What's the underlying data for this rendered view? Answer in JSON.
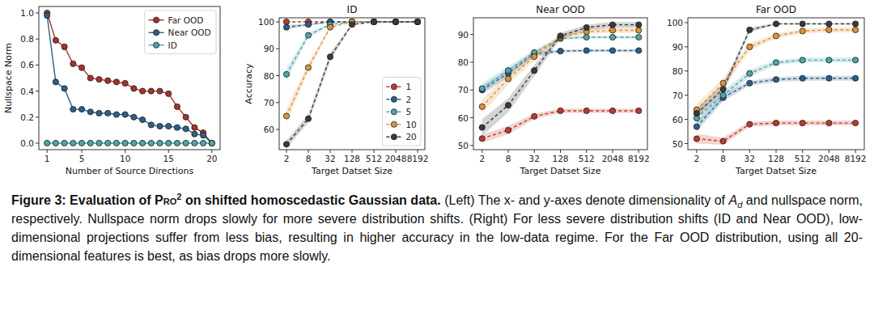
{
  "chart_data": [
    {
      "type": "line",
      "xlabel": "Number of Source Directions",
      "ylabel": "Nullspace Norm",
      "x": [
        1,
        2,
        3,
        4,
        5,
        6,
        7,
        8,
        9,
        10,
        11,
        12,
        13,
        14,
        15,
        16,
        17,
        18,
        19,
        20
      ],
      "xlim": [
        0.05,
        20.95
      ],
      "xticks": [
        1,
        5,
        10,
        15,
        20
      ],
      "ylim": [
        -0.05,
        1.05
      ],
      "yticks": [
        {
          "value": 0,
          "label": "0.0"
        },
        {
          "value": 0.2,
          "label": "0.2"
        },
        {
          "value": 0.4,
          "label": "0.4"
        },
        {
          "value": 0.6,
          "label": "0.6"
        },
        {
          "value": 0.8,
          "label": "0.8"
        },
        {
          "value": 1,
          "label": "1.0"
        }
      ],
      "legend": "upper right",
      "marker": "circle",
      "line_style": "solid",
      "series": [
        {
          "name": "Far OOD",
          "color": "#a8322c",
          "values": [
            1.0,
            0.79,
            0.74,
            0.61,
            0.58,
            0.5,
            0.49,
            0.48,
            0.47,
            0.46,
            0.42,
            0.4,
            0.4,
            0.4,
            0.38,
            0.28,
            0.2,
            0.12,
            0.08,
            0.0
          ]
        },
        {
          "name": "Near OOD",
          "color": "#2c5f8a",
          "values": [
            0.98,
            0.47,
            0.42,
            0.26,
            0.26,
            0.24,
            0.23,
            0.23,
            0.22,
            0.22,
            0.2,
            0.18,
            0.14,
            0.13,
            0.13,
            0.12,
            0.11,
            0.07,
            0.06,
            0.0
          ]
        },
        {
          "name": "ID",
          "color": "#4da6a8",
          "values": [
            0,
            0,
            0,
            0,
            0,
            0,
            0,
            0,
            0,
            0,
            0,
            0,
            0,
            0,
            0,
            0,
            0,
            0,
            0,
            0
          ]
        }
      ]
    },
    {
      "type": "line",
      "title": "ID",
      "xlabel": "Target Datset Size",
      "ylabel": "Accuracy",
      "categories": [
        "2",
        "8",
        "32",
        "128",
        "512",
        "2048",
        "8192"
      ],
      "ylim": [
        52.5,
        101.5
      ],
      "yticks": [
        60,
        70,
        80,
        90,
        100
      ],
      "legend": "lower right",
      "marker": "circle",
      "line_style": "dashed",
      "series": [
        {
          "name": "1",
          "color": "#c0392b",
          "values": [
            100,
            100,
            100,
            100,
            100,
            100,
            100
          ],
          "errors": [
            0.2,
            0,
            0,
            0,
            0,
            0,
            0
          ]
        },
        {
          "name": "2",
          "color": "#2c5f8a",
          "values": [
            98,
            99,
            100,
            100,
            100,
            100,
            100
          ],
          "errors": [
            0.8,
            0.5,
            0.2,
            0,
            0,
            0,
            0
          ]
        },
        {
          "name": "5",
          "color": "#4da6a8",
          "values": [
            80.5,
            95,
            99,
            100,
            100,
            100,
            100
          ],
          "errors": [
            2.2,
            1,
            0.3,
            0,
            0,
            0,
            0
          ]
        },
        {
          "name": "10",
          "color": "#e0923a",
          "values": [
            65,
            83,
            98,
            100,
            100,
            100,
            100
          ],
          "errors": [
            2.5,
            1.5,
            0.5,
            0,
            0,
            0,
            0
          ]
        },
        {
          "name": "20",
          "color": "#3a3a3a",
          "values": [
            54.5,
            64,
            87,
            99,
            100,
            100,
            100
          ],
          "errors": [
            1.5,
            1.5,
            1.5,
            0.3,
            0,
            0,
            0
          ]
        }
      ]
    },
    {
      "type": "line",
      "title": "Near OOD",
      "xlabel": "Target Datset Size",
      "categories": [
        "2",
        "8",
        "32",
        "128",
        "512",
        "2048",
        "8192"
      ],
      "ylim": [
        48.5,
        96
      ],
      "yticks": [
        50,
        60,
        70,
        80,
        90
      ],
      "marker": "circle",
      "line_style": "dashed",
      "series": [
        {
          "name": "1",
          "color": "#c0392b",
          "values": [
            52.5,
            55.5,
            60.5,
            62.5,
            62.5,
            62.5,
            62.5
          ],
          "errors": [
            1.5,
            1.5,
            1,
            0.8,
            0.8,
            0.8,
            0.8
          ]
        },
        {
          "name": "2",
          "color": "#2c5f8a",
          "values": [
            70,
            76,
            83,
            84,
            84.2,
            84.2,
            84.2
          ],
          "errors": [
            1.5,
            1.5,
            1,
            0.5,
            0.5,
            0.5,
            0.5
          ]
        },
        {
          "name": "5",
          "color": "#4da6a8",
          "values": [
            70.5,
            77,
            83.5,
            88.5,
            89,
            89,
            89
          ],
          "errors": [
            2,
            1.5,
            1,
            0.5,
            0.5,
            0.5,
            0.5
          ]
        },
        {
          "name": "10",
          "color": "#e0923a",
          "values": [
            64,
            74,
            82,
            89,
            91,
            91.5,
            91.5
          ],
          "errors": [
            2.5,
            2,
            1.5,
            1,
            1,
            1,
            1
          ]
        },
        {
          "name": "20",
          "color": "#3a3a3a",
          "values": [
            56.5,
            64.5,
            77,
            89.5,
            92.5,
            93.5,
            93.5
          ],
          "errors": [
            3,
            2.5,
            2,
            1,
            1,
            1,
            1
          ]
        }
      ]
    },
    {
      "type": "line",
      "title": "Far OOD",
      "xlabel": "Target Datset Size",
      "categories": [
        "2",
        "8",
        "32",
        "128",
        "512",
        "2048",
        "8192"
      ],
      "ylim": [
        47.5,
        102
      ],
      "yticks": [
        50,
        60,
        70,
        80,
        90,
        100
      ],
      "marker": "circle",
      "line_style": "dashed",
      "series": [
        {
          "name": "1",
          "color": "#c0392b",
          "values": [
            52,
            51,
            58,
            58.5,
            58.5,
            58.5,
            58.5
          ],
          "errors": [
            2,
            1.5,
            1,
            1,
            1,
            1,
            1
          ]
        },
        {
          "name": "2",
          "color": "#2c5f8a",
          "values": [
            57,
            69,
            75,
            76.5,
            77,
            77,
            77
          ],
          "errors": [
            2,
            1.5,
            1,
            1,
            1,
            1,
            1
          ]
        },
        {
          "name": "5",
          "color": "#4da6a8",
          "values": [
            60.5,
            70,
            79,
            83.5,
            84.5,
            84.5,
            84.5
          ],
          "errors": [
            2.5,
            2,
            1.5,
            1,
            1,
            1,
            1
          ]
        },
        {
          "name": "10",
          "color": "#e0923a",
          "values": [
            64,
            75,
            90,
            94.5,
            96.5,
            97,
            97
          ],
          "errors": [
            2.5,
            2,
            1.5,
            1,
            1,
            1,
            1
          ]
        },
        {
          "name": "20",
          "color": "#3a3a3a",
          "values": [
            62.5,
            72.5,
            97,
            99.5,
            99.5,
            99.5,
            99.5
          ],
          "errors": [
            2,
            2,
            1,
            0.3,
            0.3,
            0.3,
            0.3
          ]
        }
      ]
    }
  ],
  "caption": {
    "segments": [
      {
        "text": "Figure 3: ",
        "style": "bold"
      },
      {
        "text": "Evaluation of ",
        "style": "bold"
      },
      {
        "text": "Pro",
        "style": "bold-smallcaps"
      },
      {
        "text": "2",
        "style": "bold-sup"
      },
      {
        "text": " on shifted homoscedastic Gaussian data.",
        "style": "bold"
      },
      {
        "text": " (Left) The x- and y-axes denote dimensionality of ",
        "style": "plain"
      },
      {
        "text": "A",
        "style": "italic"
      },
      {
        "text": "d",
        "style": "italic-sub"
      },
      {
        "text": " and nullspace norm, respectively. Nullspace norm drops slowly for more severe distribution shifts. (Right) For less severe distribution shifts (ID and Near OOD), low-dimensional projections suffer from less bias, resulting in higher accuracy in the low-data regime. For the Far OOD distribution, using all 20-dimensional features is best, as bias drops more slowly.",
        "style": "plain"
      }
    ]
  }
}
